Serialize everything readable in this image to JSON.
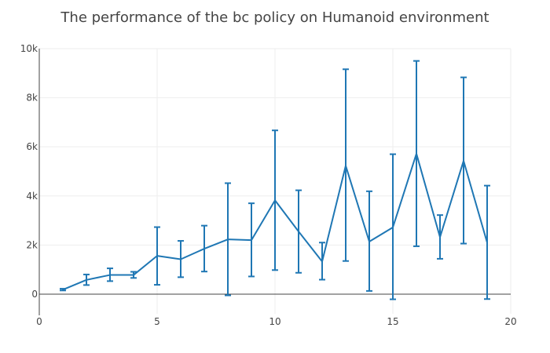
{
  "chart_data": {
    "type": "line",
    "title": "The performance of the bc policy on Humanoid environment",
    "xlabel": "",
    "ylabel": "",
    "xlim": [
      0,
      20
    ],
    "ylim": [
      -800,
      10000
    ],
    "grid": true,
    "x_ticks": [
      0,
      5,
      10,
      15,
      20
    ],
    "x_tick_labels": [
      "0",
      "5",
      "10",
      "15",
      "20"
    ],
    "y_ticks": [
      0,
      2000,
      4000,
      6000,
      8000,
      10000
    ],
    "y_tick_labels": [
      "0",
      "2k",
      "4k",
      "6k",
      "8k",
      "10k"
    ],
    "line_color": "#1f77b4",
    "series": [
      {
        "x": [
          1,
          2,
          3,
          4,
          5,
          6,
          7,
          8,
          9,
          10,
          11,
          12,
          13,
          14,
          15,
          16,
          17,
          18,
          19
        ],
        "values": [
          180,
          580,
          780,
          780,
          1560,
          1420,
          1850,
          2230,
          2200,
          3820,
          2550,
          1330,
          5230,
          2140,
          2720,
          5720,
          2320,
          5430,
          2100
        ],
        "error_low": [
          150,
          370,
          530,
          660,
          380,
          690,
          920,
          -50,
          720,
          980,
          870,
          590,
          1350,
          130,
          -210,
          1950,
          1440,
          2060,
          -200
        ],
        "error_high": [
          220,
          800,
          1050,
          910,
          2730,
          2170,
          2790,
          4520,
          3700,
          6670,
          4230,
          2100,
          9160,
          4190,
          5700,
          9500,
          3220,
          8830,
          4420
        ]
      }
    ]
  }
}
